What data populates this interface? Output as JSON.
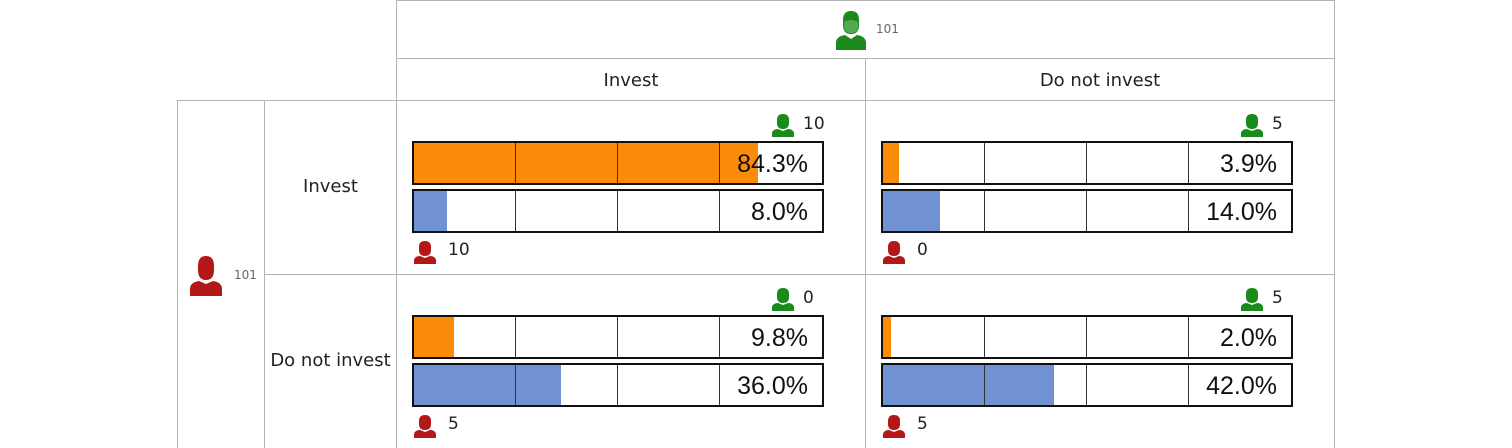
{
  "colors": {
    "orange": "#fb8c0a",
    "blue": "#7092d0",
    "green": "#1a8a1a",
    "red": "#b41717"
  },
  "header": {
    "col_player_icon": "green-person-icon",
    "col_player_count": "101",
    "row_player_icon": "red-person-icon",
    "row_player_count": "101"
  },
  "columns": [
    "Invest",
    "Do not invest"
  ],
  "rows": [
    "Invest",
    "Do not invest"
  ],
  "cells": [
    {
      "green_count": "10",
      "red_count": "10",
      "orange_pct": "84.3%",
      "orange_value": 84.3,
      "blue_pct": "8.0%",
      "blue_value": 8.0
    },
    {
      "green_count": "5",
      "red_count": "0",
      "orange_pct": "3.9%",
      "orange_value": 3.9,
      "blue_pct": "14.0%",
      "blue_value": 14.0
    },
    {
      "green_count": "0",
      "red_count": "5",
      "orange_pct": "9.8%",
      "orange_value": 9.8,
      "blue_pct": "36.0%",
      "blue_value": 36.0
    },
    {
      "green_count": "5",
      "red_count": "5",
      "orange_pct": "2.0%",
      "orange_value": 2.0,
      "blue_pct": "42.0%",
      "blue_value": 42.0
    }
  ]
}
